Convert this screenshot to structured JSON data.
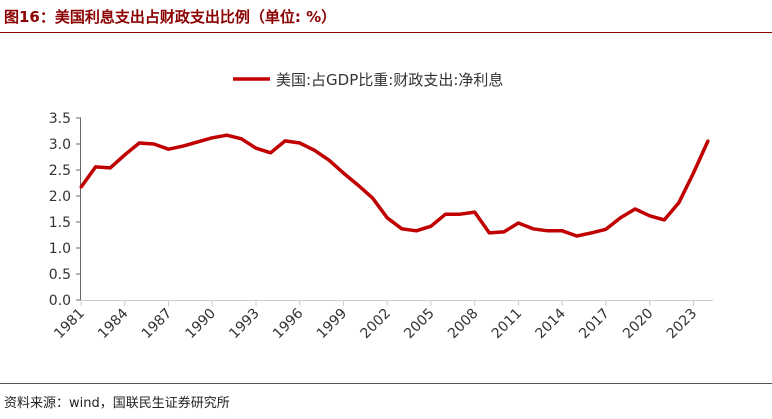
{
  "title": "图16：美国利息支出占财政支出比例（单位: %）",
  "source": "资料来源：wind，国联民生证券研究所",
  "chart_data": {
    "type": "line",
    "title": "",
    "xlabel": "",
    "ylabel": "",
    "ylim": [
      0,
      3.5
    ],
    "yticks": [
      "0.0",
      "0.5",
      "1.0",
      "1.5",
      "2.0",
      "2.5",
      "3.0",
      "3.5"
    ],
    "xticks": [
      "1981",
      "1984",
      "1987",
      "1990",
      "1993",
      "1996",
      "1999",
      "2002",
      "2005",
      "2008",
      "2011",
      "2014",
      "2017",
      "2020",
      "2023"
    ],
    "legend_position": "top-center",
    "grid": false,
    "x": [
      1981,
      1982,
      1983,
      1984,
      1985,
      1986,
      1987,
      1988,
      1989,
      1990,
      1991,
      1992,
      1993,
      1994,
      1995,
      1996,
      1997,
      1998,
      1999,
      2000,
      2001,
      2002,
      2003,
      2004,
      2005,
      2006,
      2007,
      2008,
      2009,
      2010,
      2011,
      2012,
      2013,
      2014,
      2015,
      2016,
      2017,
      2018,
      2019,
      2020,
      2021,
      2022,
      2023,
      2024
    ],
    "series": [
      {
        "name": "美国:占GDP比重:财政支出:净利息",
        "color": "#c00000",
        "values": [
          2.17,
          2.56,
          2.54,
          2.79,
          3.02,
          3.0,
          2.9,
          2.96,
          3.04,
          3.12,
          3.17,
          3.1,
          2.92,
          2.83,
          3.06,
          3.02,
          2.88,
          2.69,
          2.44,
          2.21,
          1.96,
          1.58,
          1.37,
          1.33,
          1.42,
          1.65,
          1.65,
          1.69,
          1.29,
          1.31,
          1.48,
          1.37,
          1.33,
          1.33,
          1.23,
          1.29,
          1.36,
          1.58,
          1.75,
          1.62,
          1.54,
          1.87,
          2.44,
          3.06
        ]
      }
    ]
  }
}
